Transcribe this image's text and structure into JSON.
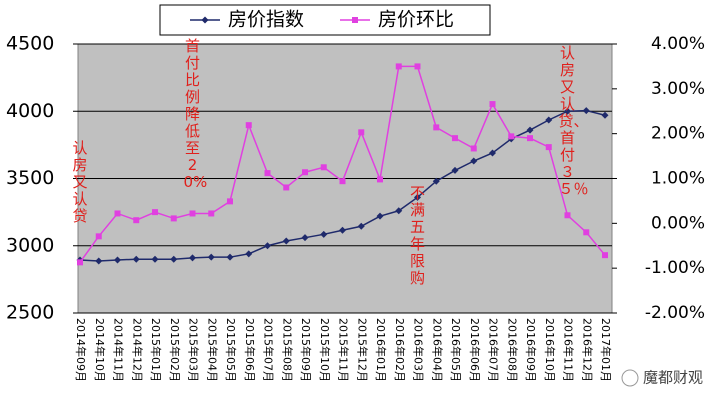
{
  "chart_data": {
    "type": "line",
    "categories": [
      "2014年09月",
      "2014年10月",
      "2014年11月",
      "2014年12月",
      "2015年01月",
      "2015年02月",
      "2015年03月",
      "2015年04月",
      "2015年05月",
      "2015年06月",
      "2015年07月",
      "2015年08月",
      "2015年09月",
      "2015年10月",
      "2015年11月",
      "2015年12月",
      "2016年01月",
      "2016年02月",
      "2016年03月",
      "2016年04月",
      "2016年05月",
      "2016年06月",
      "2016年07月",
      "2016年08月",
      "2016年09月",
      "2016年10月",
      "2016年11月",
      "2016年12月",
      "2017年01月"
    ],
    "series": [
      {
        "name": "房价指数",
        "color": "#1f2a6b",
        "marker": "diamond",
        "values": [
          2894,
          2887,
          2894,
          2900,
          2900,
          2900,
          2910,
          2915,
          2915,
          2940,
          3000,
          3035,
          3060,
          3085,
          3115,
          3145,
          3220,
          3260,
          3360,
          3480,
          3560,
          3630,
          3690,
          3795,
          3860,
          3935,
          4000,
          4005,
          3970
        ]
      },
      {
        "name": "房价环比",
        "color": "#e040e0",
        "marker": "square",
        "axis": "y2",
        "values": [
          -0.87,
          -0.29,
          0.22,
          0.07,
          0.25,
          0.11,
          0.22,
          0.22,
          0.49,
          2.19,
          1.12,
          0.8,
          1.14,
          1.25,
          0.94,
          2.03,
          0.98,
          3.5,
          3.5,
          2.14,
          1.9,
          1.67,
          2.66,
          1.94,
          1.9,
          1.7,
          0.18,
          -0.2,
          -0.71
        ]
      }
    ],
    "ylim": [
      2500,
      4500
    ],
    "yticks": [
      2500,
      3000,
      3500,
      4000,
      4500
    ],
    "y2lim": [
      -2,
      4
    ],
    "y2ticks": [
      {
        "value": -2,
        "label": "-2.00%"
      },
      {
        "value": -1,
        "label": "-1.00%"
      },
      {
        "value": 0,
        "label": "0.00%"
      },
      {
        "value": 1,
        "label": "1.00%"
      },
      {
        "value": 2,
        "label": "2.00%"
      },
      {
        "value": 3,
        "label": "3.00%"
      },
      {
        "value": 4,
        "label": "4.00%"
      }
    ],
    "grid": true,
    "legend": "top",
    "annotations": [
      {
        "text": "认房又认贷",
        "category": 0
      },
      {
        "text": "首付比例降低至20%",
        "category": 6
      },
      {
        "text": "不满五年限购",
        "category": 18
      },
      {
        "text": "认房又认贷、首付３５％",
        "category": 26
      }
    ],
    "watermark": "魔都财观"
  }
}
